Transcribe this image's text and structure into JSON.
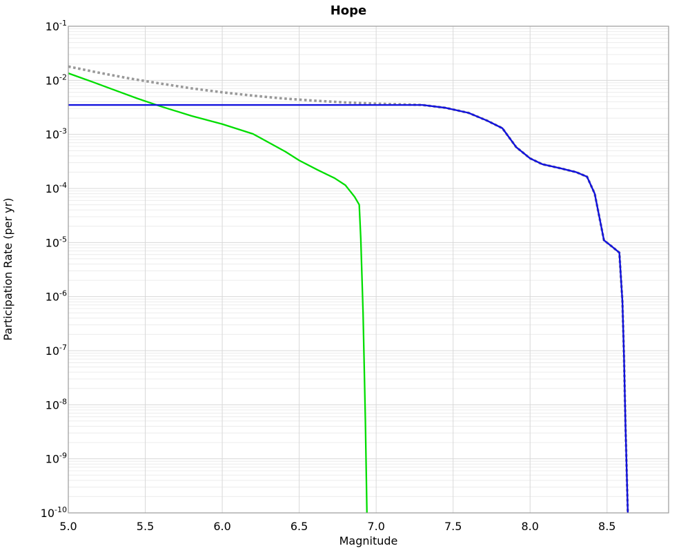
{
  "chart_data": {
    "type": "line",
    "title": "Hope",
    "xlabel": "Magnitude",
    "ylabel": "Participation Rate (per yr)",
    "xlim": [
      5.0,
      8.9
    ],
    "ylim": [
      1e-10,
      0.1
    ],
    "y_scale": "log",
    "grid": true,
    "legend_position": "none",
    "x_ticks": [
      5.0,
      5.5,
      6.0,
      6.5,
      7.0,
      7.5,
      8.0,
      8.5
    ],
    "x_tick_labels": [
      "5.0",
      "5.5",
      "6.0",
      "6.5",
      "7.0",
      "7.5",
      "8.0",
      "8.5"
    ],
    "y_tick_exponents": [
      -1,
      -2,
      -3,
      -4,
      -5,
      -6,
      -7,
      -8,
      -9,
      -10
    ],
    "colors": {
      "grid_major": "#d8d8d8",
      "grid_minor": "#ececec",
      "plot_border": "#9a9a9a",
      "background": "#ffffff"
    },
    "series": [
      {
        "name": "green-rate-curve",
        "color": "#00dd00",
        "style": "solid",
        "width": 2.3,
        "points": [
          [
            5.0,
            0.0135
          ],
          [
            5.15,
            0.0095
          ],
          [
            5.3,
            0.0066
          ],
          [
            5.45,
            0.0046
          ],
          [
            5.6,
            0.0033
          ],
          [
            5.8,
            0.0022
          ],
          [
            6.0,
            0.00155
          ],
          [
            6.2,
            0.00102
          ],
          [
            6.41,
            0.00048
          ],
          [
            6.5,
            0.00033
          ],
          [
            6.62,
            0.00022
          ],
          [
            6.73,
            0.000155
          ],
          [
            6.8,
            0.000115
          ],
          [
            6.86,
            7e-05
          ],
          [
            6.89,
            5e-05
          ],
          [
            6.9,
            1.2e-05
          ],
          [
            6.915,
            5e-07
          ],
          [
            6.93,
            5e-09
          ],
          [
            6.94,
            1e-10
          ]
        ]
      },
      {
        "name": "gray-dotted-rate-curve",
        "color": "#999999",
        "style": "dotted",
        "width": 3.6,
        "points": [
          [
            5.0,
            0.018
          ],
          [
            5.2,
            0.0138
          ],
          [
            5.4,
            0.0108
          ],
          [
            5.6,
            0.0087
          ],
          [
            5.8,
            0.0071
          ],
          [
            6.0,
            0.006
          ],
          [
            6.2,
            0.0052
          ],
          [
            6.4,
            0.0046
          ],
          [
            6.6,
            0.0042
          ],
          [
            6.8,
            0.0039
          ],
          [
            7.0,
            0.0037
          ],
          [
            7.15,
            0.0036
          ],
          [
            7.3,
            0.0035
          ],
          [
            7.45,
            0.0031
          ],
          [
            7.6,
            0.0025
          ],
          [
            7.72,
            0.0018
          ],
          [
            7.82,
            0.0013
          ],
          [
            7.91,
            0.00058
          ],
          [
            8.0,
            0.00036
          ],
          [
            8.08,
            0.00028
          ],
          [
            8.2,
            0.000235
          ],
          [
            8.3,
            0.0002
          ],
          [
            8.37,
            0.000165
          ],
          [
            8.42,
            8e-05
          ],
          [
            8.48,
            1.1e-05
          ],
          [
            8.53,
            8.5e-06
          ],
          [
            8.58,
            6.5e-06
          ],
          [
            8.6,
            8e-07
          ],
          [
            8.61,
            8e-08
          ],
          [
            8.62,
            4e-09
          ],
          [
            8.635,
            1e-10
          ]
        ]
      },
      {
        "name": "blue-rate-curve",
        "color": "#1111dd",
        "style": "solid",
        "width": 2.4,
        "points": [
          [
            5.0,
            0.0035
          ],
          [
            5.5,
            0.0035
          ],
          [
            6.0,
            0.0035
          ],
          [
            6.5,
            0.0035
          ],
          [
            7.0,
            0.0035
          ],
          [
            7.3,
            0.0035
          ],
          [
            7.45,
            0.0031
          ],
          [
            7.6,
            0.0025
          ],
          [
            7.72,
            0.0018
          ],
          [
            7.82,
            0.0013
          ],
          [
            7.91,
            0.00058
          ],
          [
            8.0,
            0.00036
          ],
          [
            8.08,
            0.00028
          ],
          [
            8.2,
            0.000235
          ],
          [
            8.3,
            0.0002
          ],
          [
            8.37,
            0.000165
          ],
          [
            8.42,
            8e-05
          ],
          [
            8.48,
            1.1e-05
          ],
          [
            8.53,
            8.5e-06
          ],
          [
            8.58,
            6.5e-06
          ],
          [
            8.6,
            8e-07
          ],
          [
            8.61,
            8e-08
          ],
          [
            8.62,
            4e-09
          ],
          [
            8.635,
            1e-10
          ]
        ]
      }
    ]
  }
}
